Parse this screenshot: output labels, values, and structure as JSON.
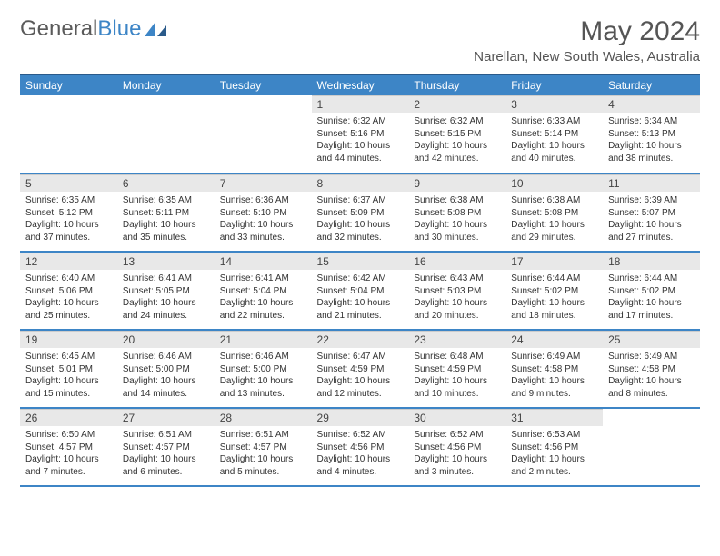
{
  "logo": {
    "text1": "General",
    "text2": "Blue"
  },
  "title": "May 2024",
  "location": "Narellan, New South Wales, Australia",
  "colors": {
    "accent": "#3d85c6",
    "header_band": "#e8e8e8"
  },
  "weekdays": [
    "Sunday",
    "Monday",
    "Tuesday",
    "Wednesday",
    "Thursday",
    "Friday",
    "Saturday"
  ],
  "first_weekday_index": 3,
  "days": [
    {
      "n": 1,
      "sunrise": "6:32 AM",
      "sunset": "5:16 PM",
      "daylight": "10 hours and 44 minutes."
    },
    {
      "n": 2,
      "sunrise": "6:32 AM",
      "sunset": "5:15 PM",
      "daylight": "10 hours and 42 minutes."
    },
    {
      "n": 3,
      "sunrise": "6:33 AM",
      "sunset": "5:14 PM",
      "daylight": "10 hours and 40 minutes."
    },
    {
      "n": 4,
      "sunrise": "6:34 AM",
      "sunset": "5:13 PM",
      "daylight": "10 hours and 38 minutes."
    },
    {
      "n": 5,
      "sunrise": "6:35 AM",
      "sunset": "5:12 PM",
      "daylight": "10 hours and 37 minutes."
    },
    {
      "n": 6,
      "sunrise": "6:35 AM",
      "sunset": "5:11 PM",
      "daylight": "10 hours and 35 minutes."
    },
    {
      "n": 7,
      "sunrise": "6:36 AM",
      "sunset": "5:10 PM",
      "daylight": "10 hours and 33 minutes."
    },
    {
      "n": 8,
      "sunrise": "6:37 AM",
      "sunset": "5:09 PM",
      "daylight": "10 hours and 32 minutes."
    },
    {
      "n": 9,
      "sunrise": "6:38 AM",
      "sunset": "5:08 PM",
      "daylight": "10 hours and 30 minutes."
    },
    {
      "n": 10,
      "sunrise": "6:38 AM",
      "sunset": "5:08 PM",
      "daylight": "10 hours and 29 minutes."
    },
    {
      "n": 11,
      "sunrise": "6:39 AM",
      "sunset": "5:07 PM",
      "daylight": "10 hours and 27 minutes."
    },
    {
      "n": 12,
      "sunrise": "6:40 AM",
      "sunset": "5:06 PM",
      "daylight": "10 hours and 25 minutes."
    },
    {
      "n": 13,
      "sunrise": "6:41 AM",
      "sunset": "5:05 PM",
      "daylight": "10 hours and 24 minutes."
    },
    {
      "n": 14,
      "sunrise": "6:41 AM",
      "sunset": "5:04 PM",
      "daylight": "10 hours and 22 minutes."
    },
    {
      "n": 15,
      "sunrise": "6:42 AM",
      "sunset": "5:04 PM",
      "daylight": "10 hours and 21 minutes."
    },
    {
      "n": 16,
      "sunrise": "6:43 AM",
      "sunset": "5:03 PM",
      "daylight": "10 hours and 20 minutes."
    },
    {
      "n": 17,
      "sunrise": "6:44 AM",
      "sunset": "5:02 PM",
      "daylight": "10 hours and 18 minutes."
    },
    {
      "n": 18,
      "sunrise": "6:44 AM",
      "sunset": "5:02 PM",
      "daylight": "10 hours and 17 minutes."
    },
    {
      "n": 19,
      "sunrise": "6:45 AM",
      "sunset": "5:01 PM",
      "daylight": "10 hours and 15 minutes."
    },
    {
      "n": 20,
      "sunrise": "6:46 AM",
      "sunset": "5:00 PM",
      "daylight": "10 hours and 14 minutes."
    },
    {
      "n": 21,
      "sunrise": "6:46 AM",
      "sunset": "5:00 PM",
      "daylight": "10 hours and 13 minutes."
    },
    {
      "n": 22,
      "sunrise": "6:47 AM",
      "sunset": "4:59 PM",
      "daylight": "10 hours and 12 minutes."
    },
    {
      "n": 23,
      "sunrise": "6:48 AM",
      "sunset": "4:59 PM",
      "daylight": "10 hours and 10 minutes."
    },
    {
      "n": 24,
      "sunrise": "6:49 AM",
      "sunset": "4:58 PM",
      "daylight": "10 hours and 9 minutes."
    },
    {
      "n": 25,
      "sunrise": "6:49 AM",
      "sunset": "4:58 PM",
      "daylight": "10 hours and 8 minutes."
    },
    {
      "n": 26,
      "sunrise": "6:50 AM",
      "sunset": "4:57 PM",
      "daylight": "10 hours and 7 minutes."
    },
    {
      "n": 27,
      "sunrise": "6:51 AM",
      "sunset": "4:57 PM",
      "daylight": "10 hours and 6 minutes."
    },
    {
      "n": 28,
      "sunrise": "6:51 AM",
      "sunset": "4:57 PM",
      "daylight": "10 hours and 5 minutes."
    },
    {
      "n": 29,
      "sunrise": "6:52 AM",
      "sunset": "4:56 PM",
      "daylight": "10 hours and 4 minutes."
    },
    {
      "n": 30,
      "sunrise": "6:52 AM",
      "sunset": "4:56 PM",
      "daylight": "10 hours and 3 minutes."
    },
    {
      "n": 31,
      "sunrise": "6:53 AM",
      "sunset": "4:56 PM",
      "daylight": "10 hours and 2 minutes."
    }
  ],
  "labels": {
    "sunrise": "Sunrise:",
    "sunset": "Sunset:",
    "daylight": "Daylight:"
  }
}
